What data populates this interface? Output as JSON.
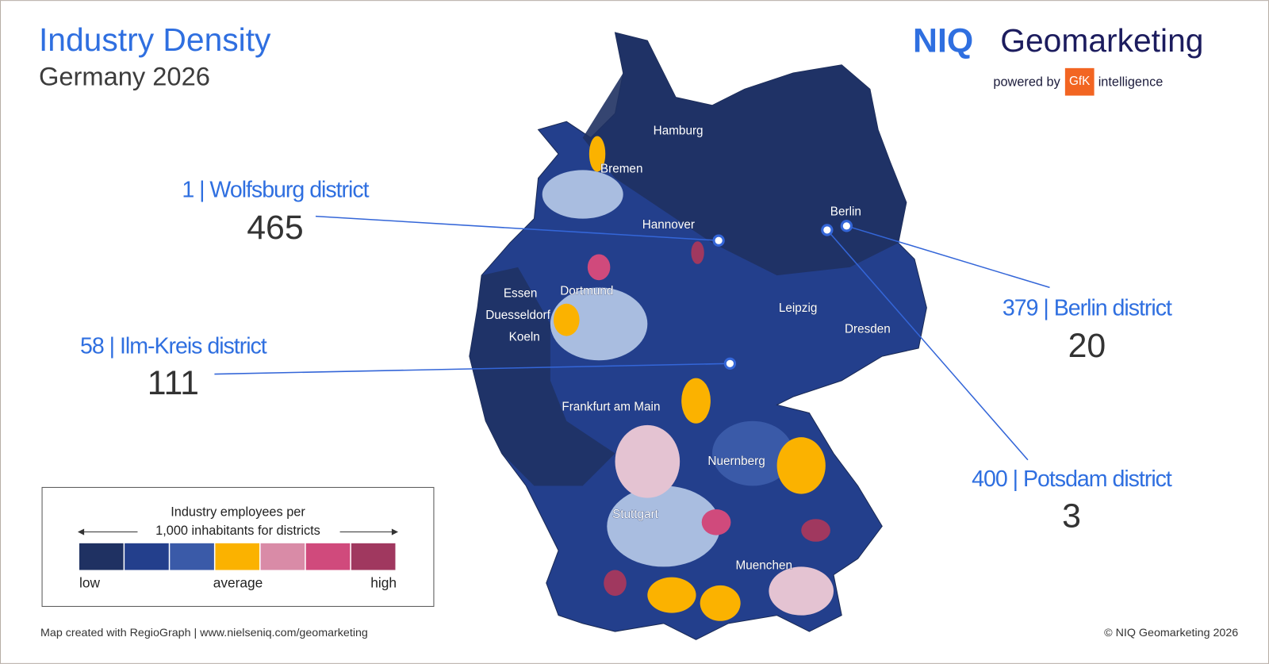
{
  "header": {
    "title": "Industry Density",
    "subtitle": "Germany 2026"
  },
  "logo": {
    "brand": "NIQ",
    "product": "Geomarketing",
    "powered_by": "powered by",
    "partner": "GfK",
    "partner_suffix": "intelligence"
  },
  "callouts": [
    {
      "label": "1 | Wolfsburg district",
      "value": 465
    },
    {
      "label": "58 | Ilm-Kreis district",
      "value": 111
    },
    {
      "label": "379 | Berlin district",
      "value": 20
    },
    {
      "label": "400 | Potsdam district",
      "value": 3
    }
  ],
  "cities": [
    "Hamburg",
    "Bremen",
    "Hannover",
    "Berlin",
    "Essen",
    "Dortmund",
    "Duesseldorf",
    "Koeln",
    "Leipzig",
    "Dresden",
    "Frankfurt am Main",
    "Nuernberg",
    "Stuttgart",
    "Muenchen"
  ],
  "legend": {
    "title": [
      "Industry employees per",
      "1,000 inhabitants for districts"
    ],
    "colors": [
      "#1f3162",
      "#233f8c",
      "#3a5aa8",
      "#fbb200",
      "#d98ba7",
      "#d04a7c",
      "#a0385f"
    ],
    "labels": [
      "low",
      "average",
      "high"
    ]
  },
  "footer": {
    "left": "Map created with RegioGraph | www.nielseniq.com/geomarketing",
    "right": "© NIQ Geomarketing 2026"
  }
}
